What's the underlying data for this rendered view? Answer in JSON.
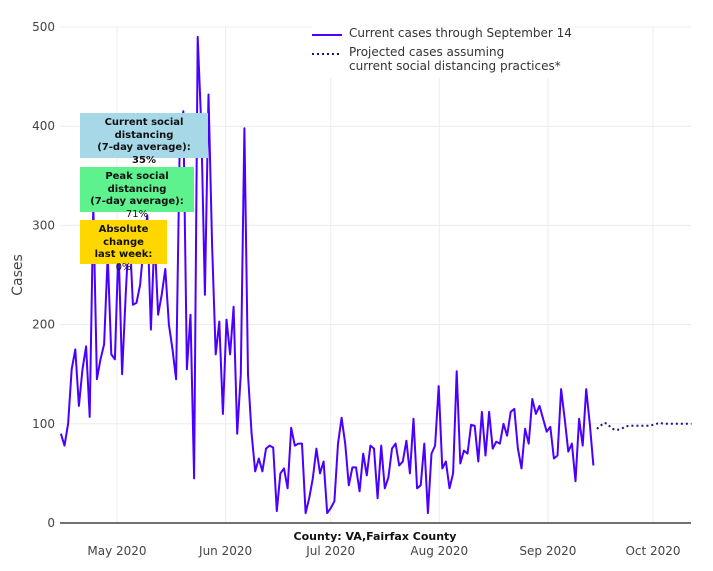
{
  "chart_data": {
    "type": "line",
    "title": "",
    "xlabel": "County: VA,Fairfax County",
    "ylabel": "Cases",
    "ylim": [
      0,
      500
    ],
    "yticks": [
      0,
      100,
      200,
      300,
      400,
      500
    ],
    "xticks": [
      {
        "date": "2020-05-01",
        "label": "May 2020"
      },
      {
        "date": "2020-06-01",
        "label": "Jun 2020"
      },
      {
        "date": "2020-07-01",
        "label": "Jul 2020"
      },
      {
        "date": "2020-08-01",
        "label": "Aug 2020"
      },
      {
        "date": "2020-09-01",
        "label": "Sep 2020"
      },
      {
        "date": "2020-10-01",
        "label": "Oct 2020"
      }
    ],
    "xlim": [
      "2020-04-15",
      "2020-10-12"
    ],
    "grid": true,
    "legend_position": "top-right",
    "series": [
      {
        "name": "Current cases through September 14",
        "color": "#4a00ff",
        "style": "solid",
        "start": "2020-04-15",
        "end": "2020-09-14",
        "values": [
          90,
          78,
          100,
          155,
          175,
          118,
          155,
          178,
          107,
          320,
          145,
          165,
          180,
          270,
          170,
          165,
          280,
          150,
          230,
          300,
          220,
          222,
          240,
          280,
          310,
          195,
          290,
          210,
          230,
          256,
          200,
          175,
          145,
          380,
          415,
          155,
          210,
          45,
          490,
          400,
          230,
          432,
          280,
          170,
          203,
          110,
          205,
          170,
          218,
          90,
          150,
          398,
          150,
          90,
          52,
          65,
          52,
          75,
          78,
          76,
          12,
          50,
          55,
          35,
          96,
          78,
          80,
          80,
          10,
          25,
          45,
          75,
          50,
          62,
          10,
          15,
          22,
          80,
          106,
          80,
          38,
          56,
          56,
          32,
          70,
          48,
          78,
          75,
          25,
          78,
          35,
          46,
          75,
          80,
          58,
          62,
          83,
          50,
          105,
          35,
          38,
          80,
          10,
          70,
          78,
          138,
          55,
          62,
          35,
          50,
          153,
          60,
          73,
          70,
          99,
          98,
          62,
          112,
          68,
          112,
          75,
          82,
          80,
          100,
          88,
          112,
          115,
          75,
          55,
          95,
          80,
          125,
          110,
          118,
          105,
          92,
          97,
          65,
          68,
          135,
          105,
          72,
          80,
          42,
          105,
          78,
          135,
          100,
          58
        ]
      },
      {
        "name": "Projected cases assuming current social distancing practices*",
        "name_line1": "Projected cases assuming",
        "name_line2": "current social distancing practices*",
        "color": "#1f0f8c",
        "style": "dotted",
        "start": "2020-09-15",
        "end": "2020-10-12",
        "values": [
          95,
          98,
          101,
          100,
          96,
          94,
          94,
          95,
          97,
          98,
          98,
          98,
          98,
          98,
          98,
          98,
          99,
          100,
          101,
          100,
          100,
          100,
          100,
          100,
          100,
          100,
          100,
          100
        ]
      }
    ],
    "annotations": [
      {
        "line1": "Current social distancing",
        "line2": "(7-day average):",
        "value": "35%",
        "color": "#a6d8e8"
      },
      {
        "line1": "Peak social distancing",
        "line2": "(7-day average):",
        "value": "71%",
        "color": "#5ef28f"
      },
      {
        "line1": "Absolute change",
        "line2": "last week:",
        "value": "0%",
        "color": "#ffd700"
      }
    ]
  }
}
